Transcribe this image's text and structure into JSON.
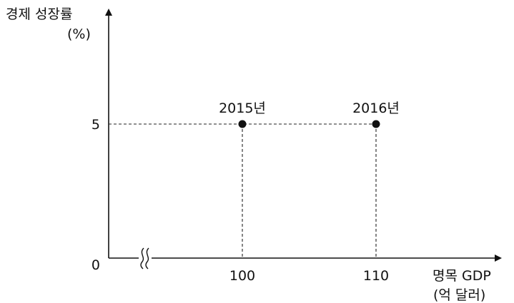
{
  "chart_data": {
    "type": "scatter",
    "ylabel": "경제 성장률",
    "yunit": "(%)",
    "xlabel": "명목 GDP",
    "xunit": "(억 달러)",
    "origin_label": "0",
    "x_axis_break": true,
    "y_ticks": [
      {
        "value": 5,
        "label": "5"
      }
    ],
    "x_ticks": [
      {
        "value": 100,
        "label": "100"
      },
      {
        "value": 110,
        "label": "110"
      }
    ],
    "points": [
      {
        "x": 100,
        "y": 5,
        "label": "2015년"
      },
      {
        "x": 110,
        "y": 5,
        "label": "2016년"
      }
    ],
    "guides": "dashed",
    "grid": false
  }
}
